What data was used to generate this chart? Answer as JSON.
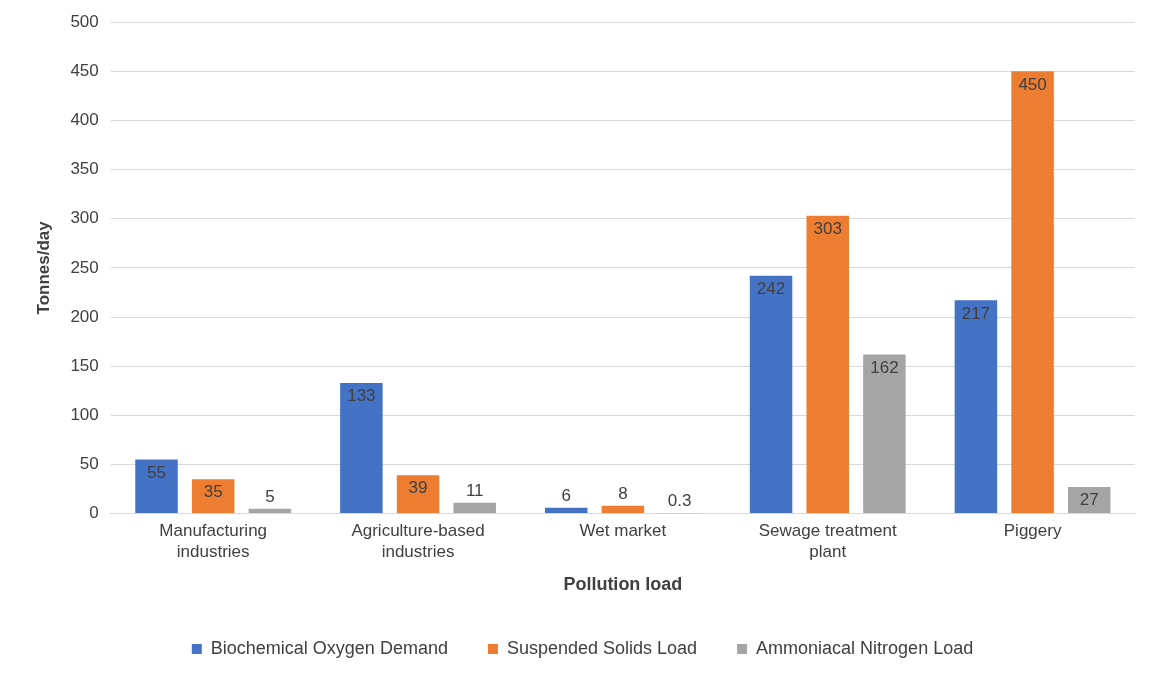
{
  "chart_data": {
    "type": "bar",
    "xlabel": "Pollution load",
    "ylabel": "Tonnes/day",
    "categories": [
      "Manufacturing industries",
      "Agriculture-based industries",
      "Wet market",
      "Sewage treatment plant",
      "Piggery"
    ],
    "series": [
      {
        "name": "Biochemical Oxygen Demand",
        "color": "#4472c4",
        "values": [
          55,
          133,
          6,
          242,
          217
        ]
      },
      {
        "name": "Suspended Solids Load",
        "color": "#ed7d31",
        "values": [
          35,
          39,
          8,
          303,
          450
        ]
      },
      {
        "name": "Ammoniacal Nitrogen Load",
        "color": "#a5a5a5",
        "values": [
          5,
          11,
          0.3,
          162,
          27
        ]
      }
    ],
    "ylim": [
      0,
      500
    ],
    "yticks": [
      0,
      50,
      100,
      150,
      200,
      250,
      300,
      350,
      400,
      450,
      500
    ],
    "grid": "y",
    "legend": "bottom",
    "data_labels": true
  }
}
